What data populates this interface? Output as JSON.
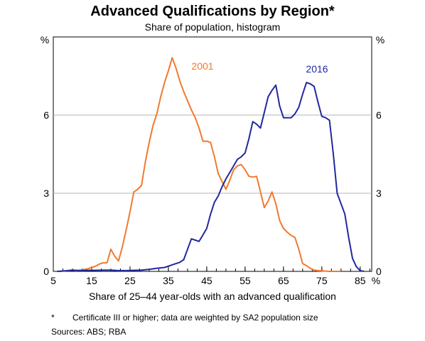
{
  "chart_data": {
    "type": "line",
    "title": "Advanced Qualifications by Region*",
    "subtitle": "Share of population, histogram",
    "xlabel": "Share of 25–44 year-olds with an advanced qualification",
    "x_unit": "%",
    "ylabel_left": "%",
    "ylabel_right": "%",
    "xlim": [
      5,
      88
    ],
    "ylim": [
      0,
      9
    ],
    "x_ticks": [
      "5",
      "15",
      "25",
      "35",
      "45",
      "55",
      "65",
      "75",
      "85"
    ],
    "y_ticks": [
      "0",
      "3",
      "6"
    ],
    "grid": "horizontal",
    "legend": "inline labels",
    "series": [
      {
        "name": "2001",
        "color": "#f2792f",
        "x": [
          6,
          7,
          8,
          9,
          10,
          11,
          12,
          13,
          14,
          15,
          16,
          17,
          18,
          19,
          20,
          21,
          22,
          23,
          24,
          25,
          26,
          27,
          28,
          29,
          30,
          31,
          32,
          33,
          34,
          35,
          36,
          37,
          38,
          39,
          40,
          41,
          42,
          43,
          44,
          45,
          46,
          47,
          48,
          49,
          50,
          51,
          52,
          53,
          54,
          55,
          56,
          57,
          58,
          59,
          60,
          61,
          62,
          63,
          64,
          65,
          66,
          67,
          68,
          69,
          70,
          71,
          72,
          73,
          74,
          75,
          76,
          77,
          78,
          79,
          80
        ],
        "y": [
          0,
          0,
          0.02,
          0.03,
          0.05,
          0.03,
          0.05,
          0.07,
          0.1,
          0.15,
          0.2,
          0.28,
          0.33,
          0.33,
          0.85,
          0.58,
          0.4,
          0.95,
          1.6,
          2.3,
          3.05,
          3.15,
          3.3,
          4.2,
          4.95,
          5.6,
          6.05,
          6.7,
          7.25,
          7.7,
          8.2,
          7.8,
          7.3,
          6.9,
          6.55,
          6.2,
          5.9,
          5.5,
          5.0,
          5.0,
          4.95,
          4.4,
          3.75,
          3.45,
          3.15,
          3.5,
          3.9,
          4.05,
          4.1,
          3.9,
          3.65,
          3.62,
          3.65,
          3.05,
          2.45,
          2.7,
          3.05,
          2.6,
          1.95,
          1.65,
          1.5,
          1.38,
          1.3,
          0.85,
          0.3,
          0.22,
          0.12,
          0.05,
          0.03,
          0.02,
          0.01,
          0,
          0,
          0,
          0
        ]
      },
      {
        "name": "2016",
        "color": "#20299e",
        "x": [
          6,
          8,
          10,
          12,
          14,
          16,
          18,
          20,
          22,
          24,
          26,
          28,
          30,
          32,
          34,
          36,
          38,
          39,
          40,
          41,
          42,
          43,
          44,
          45,
          46,
          47,
          48,
          49,
          50,
          51,
          52,
          53,
          54,
          55,
          56,
          57,
          58,
          59,
          60,
          61,
          62,
          63,
          64,
          65,
          66,
          67,
          68,
          69,
          70,
          71,
          72,
          73,
          74,
          75,
          76,
          77,
          78,
          79,
          80,
          81,
          82,
          83,
          84,
          85,
          86
        ],
        "y": [
          0,
          0.02,
          0.05,
          0.03,
          0.04,
          0.04,
          0.05,
          0.05,
          0.03,
          0.03,
          0.04,
          0.05,
          0.08,
          0.12,
          0.15,
          0.25,
          0.35,
          0.45,
          0.85,
          1.25,
          1.2,
          1.15,
          1.4,
          1.65,
          2.2,
          2.65,
          2.9,
          3.25,
          3.55,
          3.8,
          4.05,
          4.3,
          4.4,
          4.55,
          5.1,
          5.75,
          5.65,
          5.5,
          6.1,
          6.7,
          6.95,
          7.15,
          6.35,
          5.9,
          5.9,
          5.9,
          6.05,
          6.3,
          6.8,
          7.25,
          7.2,
          7.1,
          6.5,
          5.95,
          5.9,
          5.8,
          4.5,
          3.0,
          2.6,
          2.2,
          1.3,
          0.5,
          0.18,
          0.03,
          0
        ]
      }
    ]
  },
  "footnote": {
    "mark": "*",
    "text": "Certificate III or higher; data are weighted by SA2 population size"
  },
  "sources": "Sources:  ABS; RBA"
}
